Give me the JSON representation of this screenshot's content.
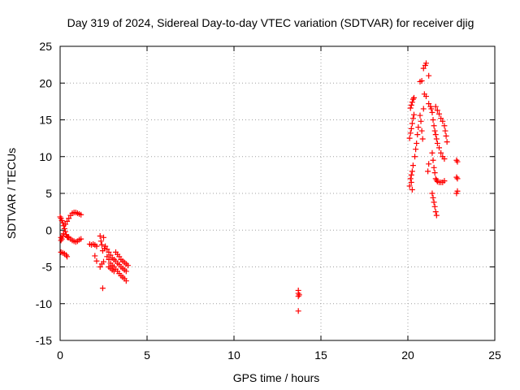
{
  "chart_data": {
    "type": "scatter",
    "title": "Day 319 of 2024, Sidereal Day-to-day VTEC variation (SDTVAR) for receiver djig",
    "xlabel": "GPS time / hours",
    "ylabel": "SDTVAR / TECUs",
    "xlim": [
      0,
      25
    ],
    "ylim": [
      -15,
      25
    ],
    "xticks": [
      0,
      5,
      10,
      15,
      20,
      25
    ],
    "yticks": [
      -15,
      -10,
      -5,
      0,
      5,
      10,
      15,
      20,
      25
    ],
    "grid": true,
    "marker": "+",
    "color": "#ff0000",
    "series": [
      {
        "name": "SDTVAR",
        "points": [
          [
            0.0,
            1.8
          ],
          [
            0.05,
            1.6
          ],
          [
            0.1,
            1.3
          ],
          [
            0.15,
            1.0
          ],
          [
            0.2,
            0.6
          ],
          [
            0.25,
            0.2
          ],
          [
            0.3,
            -0.2
          ],
          [
            0.35,
            -0.6
          ],
          [
            0.4,
            -0.9
          ],
          [
            0.45,
            -1.0
          ],
          [
            0.05,
            -1.0
          ],
          [
            0.1,
            -1.2
          ],
          [
            0.15,
            -0.8
          ],
          [
            0.2,
            -0.5
          ],
          [
            0.05,
            -1.4
          ],
          [
            0.3,
            0.8
          ],
          [
            0.4,
            1.2
          ],
          [
            0.5,
            1.6
          ],
          [
            0.6,
            2.0
          ],
          [
            0.7,
            2.3
          ],
          [
            0.8,
            2.4
          ],
          [
            0.9,
            2.4
          ],
          [
            1.0,
            2.3
          ],
          [
            1.1,
            2.2
          ],
          [
            1.2,
            2.1
          ],
          [
            0.5,
            -1.0
          ],
          [
            0.6,
            -1.2
          ],
          [
            0.7,
            -1.4
          ],
          [
            0.8,
            -1.5
          ],
          [
            0.9,
            -1.6
          ],
          [
            1.0,
            -1.5
          ],
          [
            1.1,
            -1.3
          ],
          [
            1.2,
            -1.2
          ],
          [
            0.05,
            -3.0
          ],
          [
            0.15,
            -3.1
          ],
          [
            0.25,
            -3.2
          ],
          [
            0.35,
            -3.4
          ],
          [
            0.4,
            -3.6
          ],
          [
            1.7,
            -1.9
          ],
          [
            1.8,
            -2.0
          ],
          [
            1.9,
            -1.9
          ],
          [
            2.0,
            -2.0
          ],
          [
            2.1,
            -2.2
          ],
          [
            2.0,
            -3.5
          ],
          [
            2.1,
            -4.2
          ],
          [
            2.3,
            -0.8
          ],
          [
            2.35,
            -1.5
          ],
          [
            2.4,
            -2.0
          ],
          [
            2.45,
            -2.8
          ],
          [
            2.5,
            -1.0
          ],
          [
            2.55,
            -2.5
          ],
          [
            2.3,
            -5.0
          ],
          [
            2.4,
            -4.6
          ],
          [
            2.5,
            -4.3
          ],
          [
            2.45,
            -7.9
          ],
          [
            2.6,
            -2.2
          ],
          [
            2.7,
            -2.6
          ],
          [
            2.8,
            -3.0
          ],
          [
            2.9,
            -3.4
          ],
          [
            3.0,
            -3.8
          ],
          [
            3.1,
            -4.0
          ],
          [
            3.2,
            -4.2
          ],
          [
            3.3,
            -4.5
          ],
          [
            3.4,
            -4.7
          ],
          [
            3.5,
            -5.0
          ],
          [
            3.6,
            -5.2
          ],
          [
            3.7,
            -5.4
          ],
          [
            3.8,
            -5.6
          ],
          [
            2.7,
            -3.6
          ],
          [
            2.8,
            -4.0
          ],
          [
            2.9,
            -4.5
          ],
          [
            3.0,
            -4.8
          ],
          [
            3.1,
            -5.0
          ],
          [
            3.2,
            -5.3
          ],
          [
            3.3,
            -5.6
          ],
          [
            3.4,
            -5.9
          ],
          [
            3.5,
            -6.2
          ],
          [
            3.6,
            -6.4
          ],
          [
            3.7,
            -6.6
          ],
          [
            3.8,
            -6.9
          ],
          [
            2.8,
            -5.0
          ],
          [
            2.9,
            -5.2
          ],
          [
            3.0,
            -5.4
          ],
          [
            3.1,
            -5.6
          ],
          [
            3.2,
            -3.0
          ],
          [
            3.3,
            -3.3
          ],
          [
            3.4,
            -3.6
          ],
          [
            3.5,
            -4.0
          ],
          [
            3.6,
            -4.2
          ],
          [
            3.7,
            -4.4
          ],
          [
            3.8,
            -4.6
          ],
          [
            3.9,
            -4.8
          ],
          [
            13.7,
            -8.2
          ],
          [
            13.7,
            -8.6
          ],
          [
            13.7,
            -9.0
          ],
          [
            13.75,
            -8.8
          ],
          [
            13.7,
            -11.0
          ],
          [
            20.1,
            6.0
          ],
          [
            20.15,
            7.0
          ],
          [
            20.2,
            7.5
          ],
          [
            20.25,
            8.0
          ],
          [
            20.3,
            8.8
          ],
          [
            20.2,
            6.5
          ],
          [
            20.25,
            5.5
          ],
          [
            20.1,
            12.5
          ],
          [
            20.15,
            13.2
          ],
          [
            20.2,
            13.8
          ],
          [
            20.25,
            14.5
          ],
          [
            20.3,
            15.2
          ],
          [
            20.35,
            15.7
          ],
          [
            20.15,
            16.6
          ],
          [
            20.2,
            17.0
          ],
          [
            20.25,
            17.4
          ],
          [
            20.3,
            17.8
          ],
          [
            20.35,
            18.0
          ],
          [
            20.4,
            10.0
          ],
          [
            20.45,
            11.0
          ],
          [
            20.5,
            11.8
          ],
          [
            20.55,
            13.0
          ],
          [
            20.6,
            14.0
          ],
          [
            20.7,
            15.6
          ],
          [
            20.75,
            14.8
          ],
          [
            20.8,
            13.5
          ],
          [
            20.85,
            12.4
          ],
          [
            20.9,
            16.5
          ],
          [
            20.7,
            20.2
          ],
          [
            20.8,
            20.3
          ],
          [
            20.9,
            22.0
          ],
          [
            21.0,
            22.4
          ],
          [
            21.05,
            22.7
          ],
          [
            20.95,
            18.5
          ],
          [
            21.05,
            18.2
          ],
          [
            21.2,
            21.0
          ],
          [
            21.2,
            17.2
          ],
          [
            21.2,
            9.0
          ],
          [
            21.15,
            8.0
          ],
          [
            21.3,
            16.8
          ],
          [
            21.35,
            16.5
          ],
          [
            21.4,
            16.0
          ],
          [
            21.45,
            15.0
          ],
          [
            21.5,
            14.2
          ],
          [
            21.55,
            13.5
          ],
          [
            21.6,
            13.0
          ],
          [
            21.65,
            12.4
          ],
          [
            21.7,
            11.8
          ],
          [
            21.8,
            11.2
          ],
          [
            21.9,
            10.5
          ],
          [
            22.0,
            10.0
          ],
          [
            22.1,
            9.7
          ],
          [
            21.6,
            16.8
          ],
          [
            21.7,
            16.3
          ],
          [
            21.8,
            15.8
          ],
          [
            21.9,
            15.2
          ],
          [
            22.0,
            14.8
          ],
          [
            22.1,
            14.2
          ],
          [
            22.15,
            13.5
          ],
          [
            22.2,
            12.8
          ],
          [
            22.25,
            12.0
          ],
          [
            21.4,
            10.5
          ],
          [
            21.45,
            9.5
          ],
          [
            21.5,
            8.5
          ],
          [
            21.55,
            7.8
          ],
          [
            21.6,
            7.0
          ],
          [
            21.65,
            6.8
          ],
          [
            21.7,
            6.6
          ],
          [
            21.8,
            6.5
          ],
          [
            21.9,
            6.5
          ],
          [
            22.0,
            6.5
          ],
          [
            22.1,
            6.7
          ],
          [
            21.4,
            5.0
          ],
          [
            21.45,
            4.4
          ],
          [
            21.5,
            3.8
          ],
          [
            21.55,
            3.2
          ],
          [
            21.6,
            2.5
          ],
          [
            21.65,
            2.0
          ],
          [
            22.8,
            9.5
          ],
          [
            22.85,
            9.3
          ],
          [
            22.8,
            7.2
          ],
          [
            22.85,
            7.0
          ],
          [
            22.8,
            5.0
          ],
          [
            22.85,
            5.3
          ]
        ]
      }
    ]
  }
}
